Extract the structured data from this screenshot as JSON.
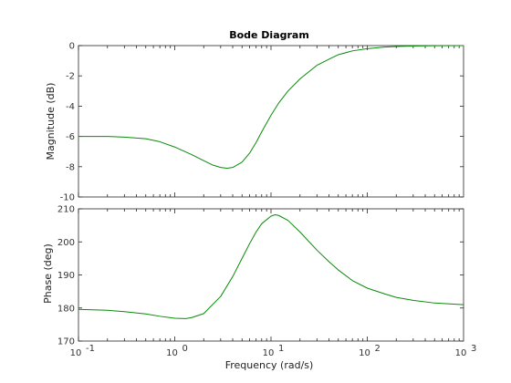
{
  "chart_data": [
    {
      "type": "line",
      "title": "Bode Diagram",
      "ylabel": "Magnitude (dB)",
      "xlabel": "",
      "xscale": "log",
      "xlim": [
        0.1,
        1000
      ],
      "ylim": [
        -10,
        0
      ],
      "yticks": [
        0,
        -2,
        -4,
        -6,
        -8,
        -10
      ],
      "grid": false,
      "series": [
        {
          "color": "#0a8a0a",
          "points": [
            [
              0.1,
              -6.0
            ],
            [
              0.2,
              -6.0
            ],
            [
              0.3,
              -6.05
            ],
            [
              0.5,
              -6.15
            ],
            [
              0.7,
              -6.35
            ],
            [
              1.0,
              -6.7
            ],
            [
              1.5,
              -7.2
            ],
            [
              2.0,
              -7.6
            ],
            [
              2.5,
              -7.9
            ],
            [
              3.0,
              -8.05
            ],
            [
              3.5,
              -8.1
            ],
            [
              4.0,
              -8.05
            ],
            [
              5.0,
              -7.7
            ],
            [
              6.0,
              -7.1
            ],
            [
              7.0,
              -6.4
            ],
            [
              8.0,
              -5.7
            ],
            [
              10.0,
              -4.6
            ],
            [
              12.0,
              -3.8
            ],
            [
              15.0,
              -3.0
            ],
            [
              20.0,
              -2.2
            ],
            [
              30.0,
              -1.3
            ],
            [
              40.0,
              -0.9
            ],
            [
              50.0,
              -0.6
            ],
            [
              70.0,
              -0.35
            ],
            [
              100.0,
              -0.2
            ],
            [
              150.0,
              -0.1
            ],
            [
              200.0,
              -0.06
            ],
            [
              300.0,
              -0.03
            ],
            [
              500.0,
              -0.01
            ],
            [
              1000.0,
              0.0
            ]
          ]
        }
      ]
    },
    {
      "type": "line",
      "title": "",
      "ylabel": "Phase (deg)",
      "xlabel": "Frequency  (rad/s)",
      "xscale": "log",
      "xlim": [
        0.1,
        1000
      ],
      "ylim": [
        170,
        210
      ],
      "yticks": [
        170,
        180,
        190,
        200,
        210
      ],
      "xticks": [
        {
          "value": 0.1,
          "base": "10",
          "exp": "-1"
        },
        {
          "value": 1,
          "base": "10",
          "exp": "0"
        },
        {
          "value": 10,
          "base": "10",
          "exp": "1"
        },
        {
          "value": 100,
          "base": "10",
          "exp": "2"
        },
        {
          "value": 1000,
          "base": "10",
          "exp": "3"
        }
      ],
      "grid": false,
      "series": [
        {
          "color": "#0a8a0a",
          "points": [
            [
              0.1,
              179.6
            ],
            [
              0.2,
              179.3
            ],
            [
              0.3,
              178.9
            ],
            [
              0.5,
              178.2
            ],
            [
              0.7,
              177.5
            ],
            [
              1.0,
              176.9
            ],
            [
              1.3,
              176.8
            ],
            [
              1.5,
              177.1
            ],
            [
              2.0,
              178.3
            ],
            [
              3.0,
              183.5
            ],
            [
              4.0,
              189.5
            ],
            [
              5.0,
              195.0
            ],
            [
              6.0,
              199.5
            ],
            [
              7.0,
              203.0
            ],
            [
              8.0,
              205.5
            ],
            [
              10.0,
              207.8
            ],
            [
              11.0,
              208.2
            ],
            [
              12.0,
              208.0
            ],
            [
              15.0,
              206.5
            ],
            [
              20.0,
              203.0
            ],
            [
              30.0,
              197.5
            ],
            [
              40.0,
              194.0
            ],
            [
              50.0,
              191.5
            ],
            [
              70.0,
              188.3
            ],
            [
              100.0,
              186.0
            ],
            [
              150.0,
              184.3
            ],
            [
              200.0,
              183.2
            ],
            [
              300.0,
              182.3
            ],
            [
              500.0,
              181.5
            ],
            [
              1000.0,
              181.0
            ]
          ]
        }
      ]
    }
  ]
}
